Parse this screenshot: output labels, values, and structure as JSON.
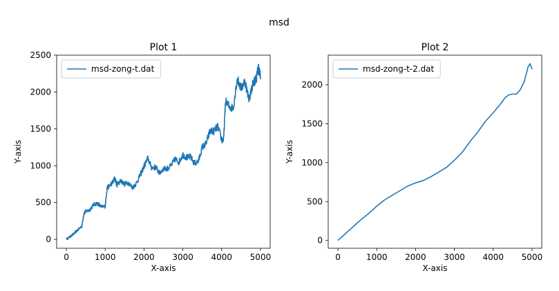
{
  "figure": {
    "suptitle": "msd",
    "series_color": "#1f77b4"
  },
  "chart_data": [
    {
      "type": "line",
      "title": "Plot 1",
      "xlabel": "X-axis",
      "ylabel": "Y-axis",
      "xlim": [
        -250,
        5250
      ],
      "ylim": [
        -120,
        2500
      ],
      "xticks": [
        0,
        1000,
        2000,
        3000,
        4000,
        5000
      ],
      "yticks": [
        0,
        500,
        1000,
        1500,
        2000,
        2500
      ],
      "legend": "top-left",
      "noisy": true,
      "series": [
        {
          "name": "msd-zong-t.dat",
          "x": [
            0,
            100,
            200,
            300,
            400,
            450,
            500,
            600,
            700,
            800,
            900,
            1000,
            1050,
            1100,
            1200,
            1250,
            1300,
            1400,
            1500,
            1600,
            1700,
            1800,
            1900,
            2000,
            2100,
            2200,
            2300,
            2400,
            2500,
            2600,
            2700,
            2800,
            2900,
            3000,
            3100,
            3200,
            3300,
            3400,
            3500,
            3600,
            3700,
            3800,
            3900,
            4000,
            4050,
            4100,
            4200,
            4300,
            4400,
            4500,
            4600,
            4700,
            4800,
            4900,
            4950,
            5000
          ],
          "y": [
            0,
            40,
            80,
            130,
            180,
            350,
            380,
            400,
            470,
            490,
            440,
            450,
            700,
            720,
            780,
            830,
            740,
            800,
            750,
            770,
            700,
            760,
            870,
            990,
            1100,
            970,
            980,
            900,
            960,
            960,
            1000,
            1090,
            1050,
            1150,
            1110,
            1120,
            1030,
            1060,
            1250,
            1300,
            1470,
            1470,
            1530,
            1350,
            1350,
            1870,
            1800,
            1780,
            2180,
            2050,
            2150,
            1900,
            2100,
            2200,
            2340,
            2210
          ]
        }
      ]
    },
    {
      "type": "line",
      "title": "Plot 2",
      "xlabel": "X-axis",
      "ylabel": "Y-axis",
      "xlim": [
        -250,
        5250
      ],
      "ylim": [
        -100,
        2380
      ],
      "xticks": [
        0,
        1000,
        2000,
        3000,
        4000,
        5000
      ],
      "yticks": [
        0,
        500,
        1000,
        1500,
        2000
      ],
      "legend": "top-left",
      "noisy": false,
      "series": [
        {
          "name": "msd-zong-t-2.dat",
          "x": [
            0,
            200,
            400,
            600,
            800,
            1000,
            1200,
            1400,
            1600,
            1800,
            2000,
            2200,
            2400,
            2600,
            2800,
            3000,
            3200,
            3400,
            3600,
            3800,
            4000,
            4200,
            4300,
            4400,
            4500,
            4600,
            4700,
            4800,
            4900,
            4950,
            5000
          ],
          "y": [
            0,
            90,
            180,
            270,
            350,
            440,
            520,
            580,
            640,
            700,
            740,
            770,
            820,
            880,
            940,
            1030,
            1130,
            1270,
            1390,
            1530,
            1640,
            1760,
            1830,
            1870,
            1880,
            1880,
            1940,
            2040,
            2230,
            2270,
            2200
          ]
        }
      ]
    }
  ]
}
